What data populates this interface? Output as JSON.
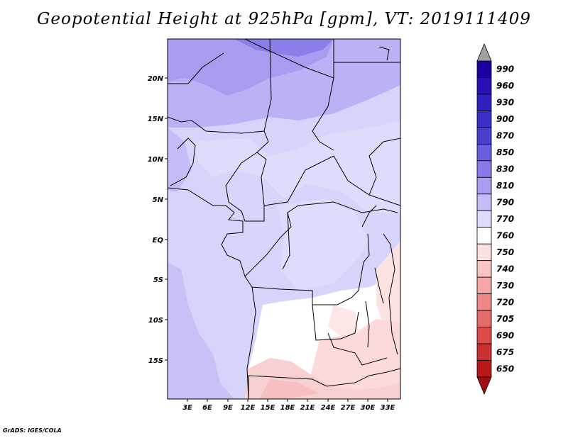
{
  "title": "Geopotential Height at 925hPa [gpm], VT: 2019111409",
  "credit": "GrADS: IGES/COLA",
  "map": {
    "lat_labels": [
      "20N",
      "15N",
      "10N",
      "5N",
      "EQ",
      "5S",
      "10S",
      "15S"
    ],
    "lon_labels": [
      "3E",
      "6E",
      "9E",
      "12E",
      "15E",
      "18E",
      "21E",
      "24E",
      "27E",
      "30E",
      "33E"
    ]
  },
  "colorbar": {
    "levels": [
      "990",
      "960",
      "930",
      "900",
      "870",
      "850",
      "830",
      "810",
      "790",
      "770",
      "760",
      "750",
      "740",
      "730",
      "720",
      "705",
      "690",
      "675",
      "650"
    ],
    "colors": [
      "#1e00a0",
      "#2810b4",
      "#3020c0",
      "#3a30c8",
      "#4a40d0",
      "#6a5ee0",
      "#8878e8",
      "#a89cf0",
      "#c4bcf6",
      "#dcdcfc",
      "#ffffff",
      "#fce0e0",
      "#f8c4c4",
      "#f4a6a6",
      "#ee8888",
      "#e66a6a",
      "#dc4a4a",
      "#cc3030",
      "#b81818"
    ],
    "max_arrow_color": "#a0a0a0",
    "min_arrow_color": "#a01010"
  }
}
